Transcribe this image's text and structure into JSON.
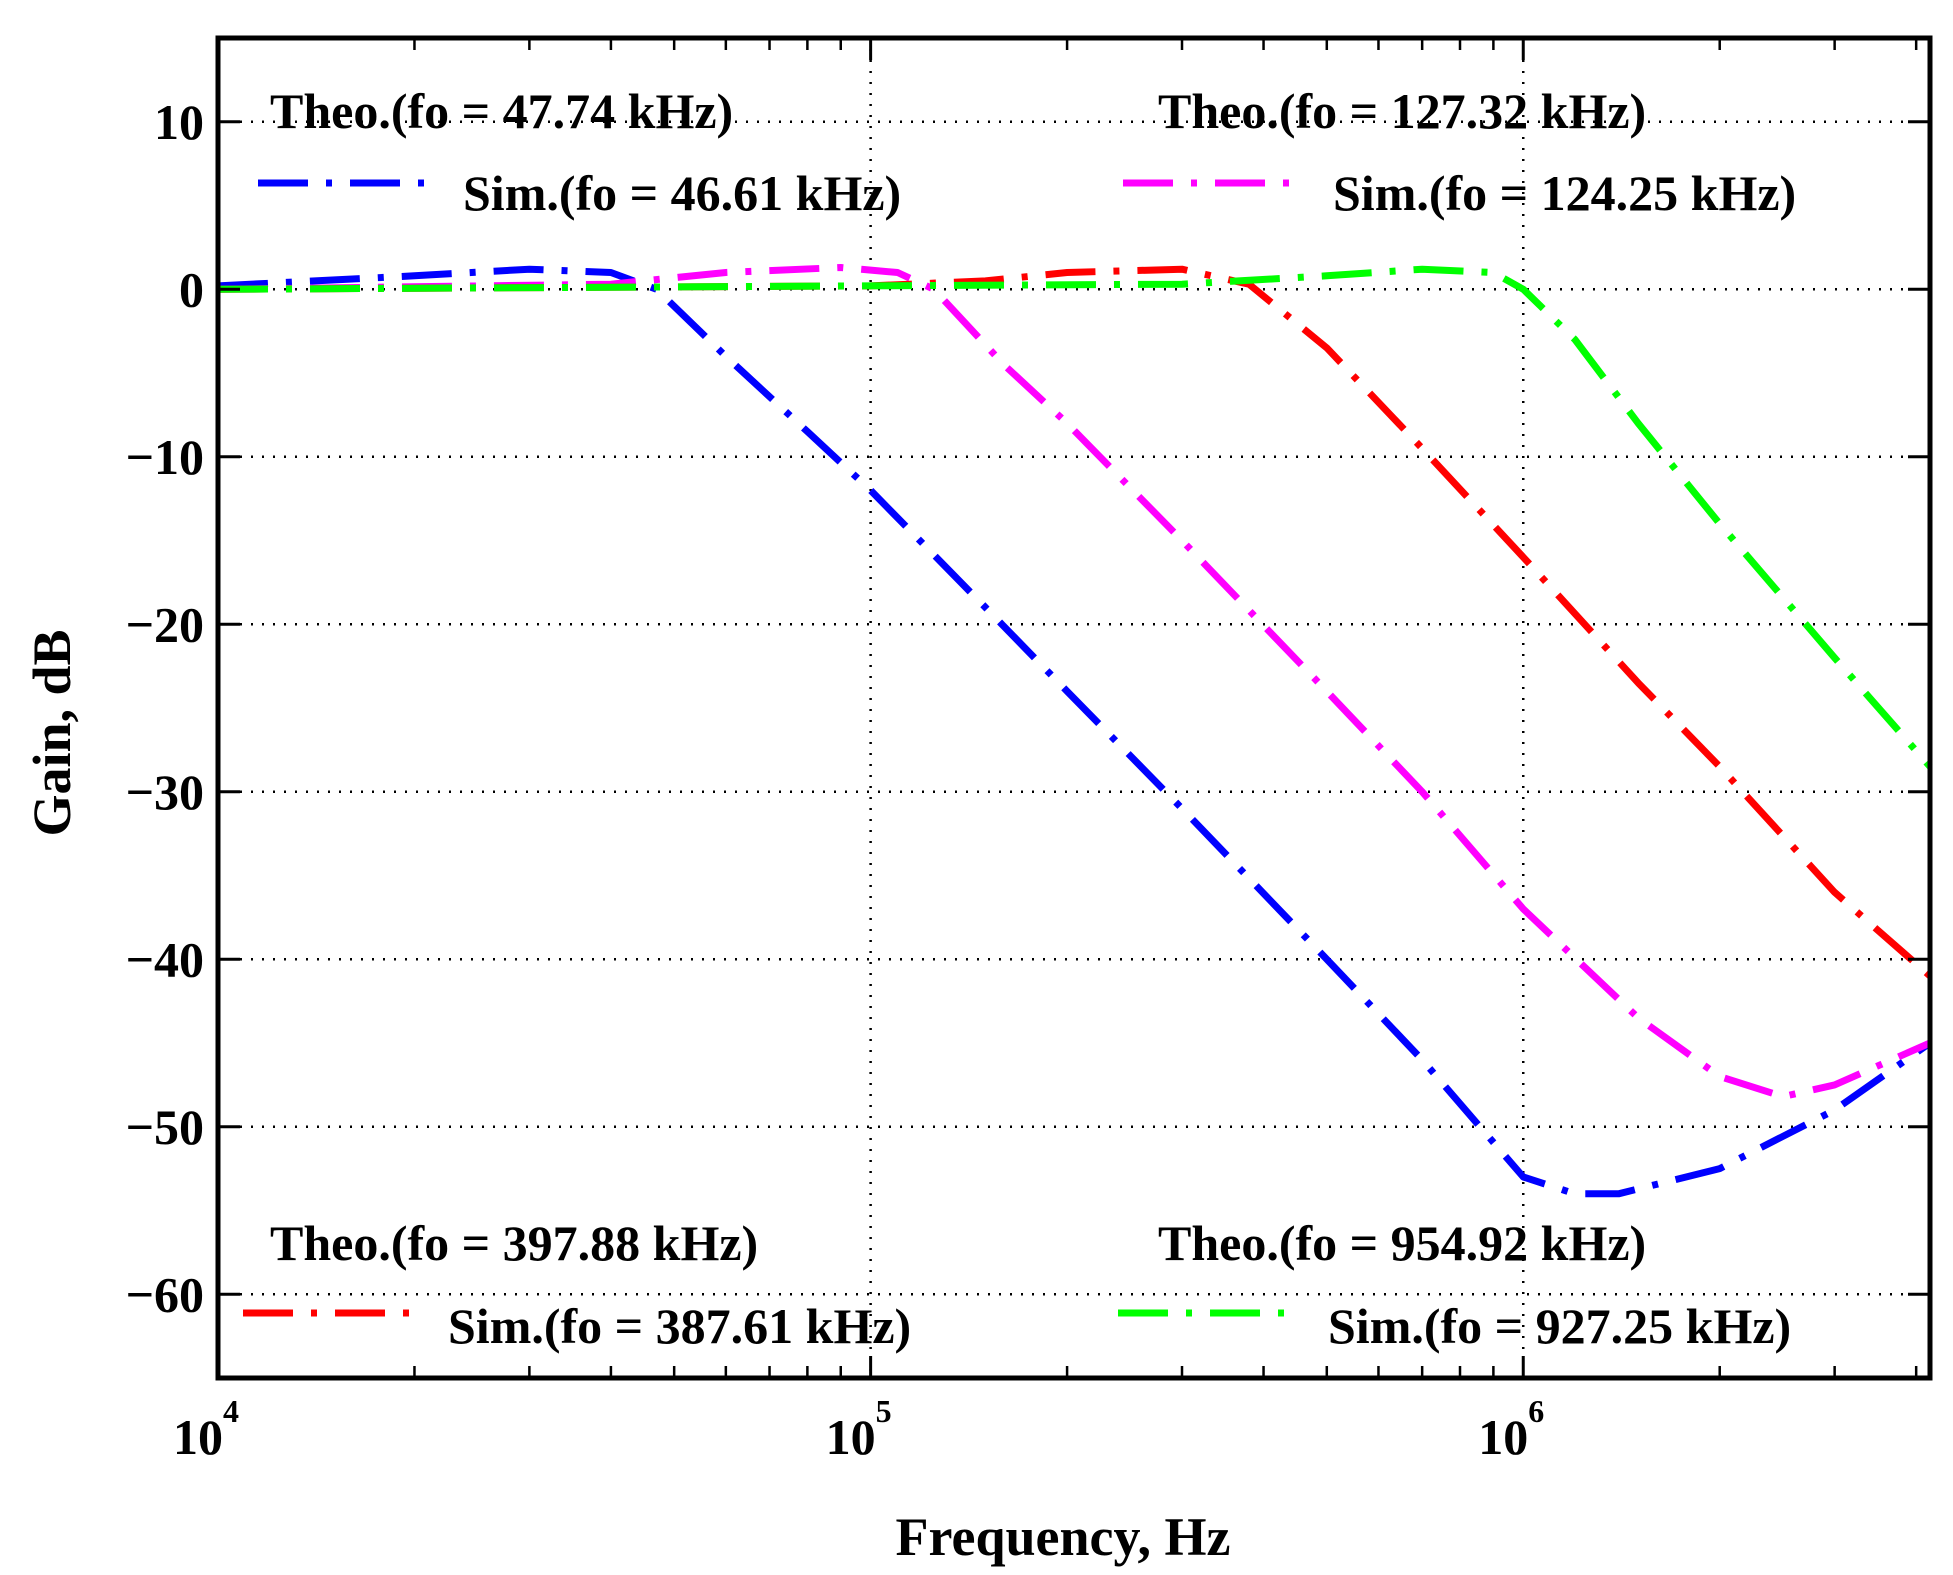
{
  "chart_data": {
    "type": "line",
    "title": "",
    "xlabel": "Frequency, Hz",
    "ylabel": "Gain, dB",
    "xscale": "log",
    "xlim": [
      10000,
      4200000
    ],
    "ylim": [
      -65,
      15
    ],
    "grid": true,
    "x_ticks": [
      {
        "value": 10000,
        "base": "10",
        "exp": "4"
      },
      {
        "value": 100000,
        "base": "10",
        "exp": "5"
      },
      {
        "value": 1000000,
        "base": "10",
        "exp": "6"
      }
    ],
    "y_ticks": [
      {
        "value": 10,
        "label": "10"
      },
      {
        "value": 0,
        "label": "0"
      },
      {
        "value": -10,
        "label": "−10"
      },
      {
        "value": -20,
        "label": "−20"
      },
      {
        "value": -30,
        "label": "−30"
      },
      {
        "value": -40,
        "label": "−40"
      },
      {
        "value": -50,
        "label": "−50"
      },
      {
        "value": -60,
        "label": "−60"
      }
    ],
    "series": [
      {
        "name": "Sim.(fo = 46.61 kHz)",
        "theo_label": "Theo.(fo = 47.74 kHz)",
        "color": "#0000ff",
        "x": [
          10000,
          20000,
          30000,
          40000,
          47000,
          60000,
          80000,
          100000,
          150000,
          200000,
          300000,
          500000,
          700000,
          1000000,
          1200000,
          1400000,
          2000000,
          3000000,
          4200000
        ],
        "y": [
          0.2,
          0.8,
          1.2,
          1.0,
          0,
          -4,
          -8.5,
          -12,
          -19,
          -24,
          -31,
          -40,
          -46,
          -53,
          -54,
          -54,
          -52.5,
          -49,
          -45
        ]
      },
      {
        "name": "Sim.(fo = 124.25 kHz)",
        "theo_label": "Theo.(fo = 127.32 kHz)",
        "color": "#ff00ff",
        "x": [
          10000,
          40000,
          60000,
          90000,
          110000,
          125000,
          160000,
          200000,
          300000,
          500000,
          700000,
          1000000,
          1500000,
          2000000,
          2500000,
          3000000,
          4200000
        ],
        "y": [
          0,
          0.3,
          1.0,
          1.3,
          1.0,
          0,
          -4.5,
          -8,
          -15,
          -24,
          -30,
          -37,
          -43.5,
          -47,
          -48.2,
          -47.5,
          -45
        ]
      },
      {
        "name": "Sim.(fo = 387.61 kHz)",
        "theo_label": "Theo.(fo = 397.88 kHz)",
        "color": "#ff0000",
        "x": [
          10000,
          100000,
          150000,
          200000,
          300000,
          380000,
          500000,
          700000,
          1000000,
          1500000,
          2000000,
          3000000,
          4200000
        ],
        "y": [
          0,
          0.2,
          0.5,
          1.0,
          1.2,
          0.3,
          -3.5,
          -9.5,
          -16,
          -23.5,
          -28.5,
          -36,
          -41
        ]
      },
      {
        "name": "Sim.(fo = 927.25 kHz)",
        "theo_label": "Theo.(fo = 954.92 kHz)",
        "color": "#00ff00",
        "x": [
          10000,
          300000,
          500000,
          700000,
          900000,
          1000000,
          1200000,
          1500000,
          2000000,
          3000000,
          4200000
        ],
        "y": [
          0,
          0.3,
          0.8,
          1.2,
          1.0,
          0,
          -3,
          -8,
          -14,
          -22,
          -28.5
        ]
      }
    ]
  }
}
